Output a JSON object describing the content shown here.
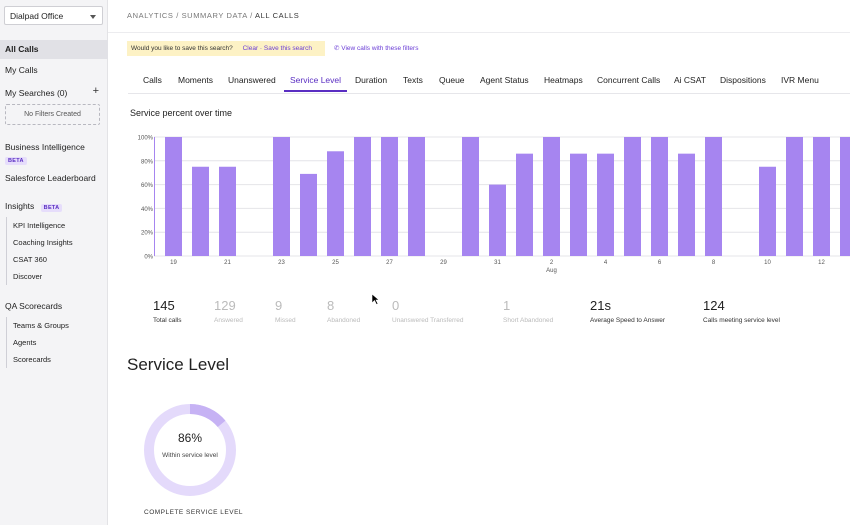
{
  "sidebar": {
    "office": "Dialpad Office",
    "all_calls": "All Calls",
    "my_calls": "My Calls",
    "my_searches": "My Searches (0)",
    "no_filters": "No Filters Created",
    "business_intelligence": "Business Intelligence",
    "beta": "BETA",
    "salesforce": "Salesforce Leaderboard",
    "insights": "Insights",
    "insights_items": [
      "KPI Intelligence",
      "Coaching Insights",
      "CSAT 360",
      "Discover"
    ],
    "qa_scorecards": "QA Scorecards",
    "qa_items": [
      "Teams & Groups",
      "Agents",
      "Scorecards"
    ]
  },
  "header": {
    "breadcrumb_prefix": "ANALYTICS / SUMMARY DATA /",
    "breadcrumb_current": "ALL CALLS"
  },
  "save_search": {
    "question": "Would you like to save this search?",
    "clear": "Clear · Save this search",
    "view_calls": "View calls with these filters"
  },
  "tabs": [
    "Calls",
    "Moments",
    "Unanswered",
    "Service Level",
    "Duration",
    "Texts",
    "Queue",
    "Agent Status",
    "Heatmaps",
    "Concurrent Calls",
    "Ai CSAT",
    "Dispositions",
    "IVR Menu"
  ],
  "active_tab": "Service Level",
  "chart_title": "Service percent over time",
  "chart_data": {
    "type": "bar",
    "title": "Service percent over time",
    "x": [
      18,
      19,
      20,
      21,
      22,
      23,
      24,
      25,
      26,
      27,
      28,
      29,
      30,
      31,
      1,
      2,
      3,
      4,
      5,
      6,
      7,
      8,
      9,
      10,
      11,
      12,
      13
    ],
    "values": [
      100,
      100,
      75,
      75,
      0,
      100,
      69,
      88,
      100,
      100,
      100,
      0,
      100,
      60,
      86,
      100,
      86,
      86,
      100,
      100,
      86,
      100,
      0,
      75,
      100,
      100,
      100
    ],
    "x_tick_labels": [
      "19",
      "21",
      "23",
      "25",
      "27",
      "29",
      "31",
      "2",
      "4",
      "6",
      "8",
      "10",
      "12"
    ],
    "month_label": "Aug",
    "y_tick_labels": [
      "0%",
      "20%",
      "40%",
      "60%",
      "80%",
      "100%"
    ],
    "ylim": [
      0,
      100
    ],
    "bar_color": "#a685f0",
    "grid": true
  },
  "stats": [
    {
      "value": "145",
      "label": "Total calls",
      "muted": false
    },
    {
      "value": "129",
      "label": "Answered",
      "muted": true
    },
    {
      "value": "9",
      "label": "Missed",
      "muted": true
    },
    {
      "value": "8",
      "label": "Abandoned",
      "muted": true
    },
    {
      "value": "0",
      "label": "Unanswered Transferred",
      "muted": true
    },
    {
      "value": "1",
      "label": "Short Abandoned",
      "muted": true
    },
    {
      "value": "21s",
      "label": "Average Speed to Answer",
      "muted": false
    },
    {
      "value": "124",
      "label": "Calls meeting service level",
      "muted": false
    }
  ],
  "service_level": {
    "title": "Service Level",
    "percent_value": 86,
    "percent": "86%",
    "label": "Within service level",
    "footer": "COMPLETE SERVICE LEVEL",
    "ring_color": "#e4dafb",
    "gap_color": "#c6b2f4"
  }
}
